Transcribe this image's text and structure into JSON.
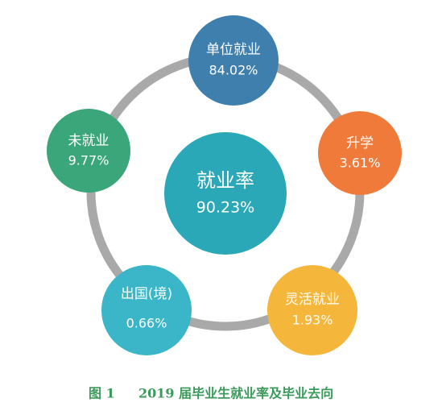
{
  "center": {
    "label": "就业率",
    "value": "90.23%"
  },
  "nodes": [
    {
      "label": "单位就业",
      "value": "84.02%"
    },
    {
      "label": "升学",
      "value": "3.61%"
    },
    {
      "label": "灵活就业",
      "value": "1.93%"
    },
    {
      "label": "出国(境)",
      "value": "0.66%"
    },
    {
      "label": "未就业",
      "value": "9.77%"
    }
  ],
  "caption": {
    "figure": "图 1",
    "text": "2019 届毕业生就业率及毕业去向"
  }
}
